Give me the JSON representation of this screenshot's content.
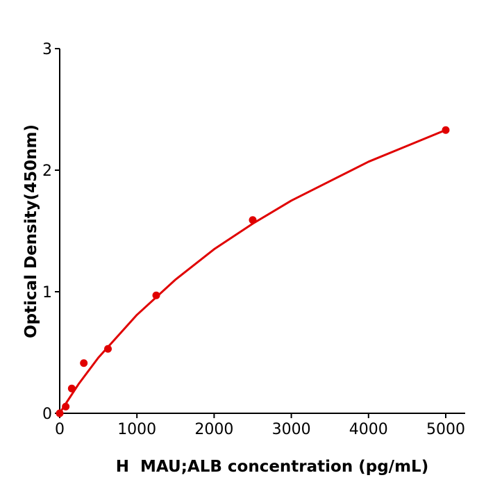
{
  "chart_data": {
    "type": "scatter",
    "title": "",
    "xlabel": "H  MAU;ALB concentration (pg/mL)",
    "ylabel": "Optical Density(450nm)",
    "xlim": [
      0,
      5250
    ],
    "ylim": [
      0,
      3
    ],
    "xticks": [
      "0",
      "1000",
      "2000",
      "3000",
      "4000",
      "5000"
    ],
    "yticks": [
      "0",
      "1",
      "2",
      "3"
    ],
    "grid": false,
    "legend": "none",
    "color": "#e00000",
    "points": {
      "x": [
        0,
        78,
        156,
        312,
        625,
        1250,
        2500,
        5000
      ],
      "y": [
        0.0,
        0.055,
        0.204,
        0.413,
        0.53,
        0.97,
        1.59,
        2.33
      ]
    },
    "fitted_curve": {
      "x": [
        0,
        25,
        50,
        100,
        250,
        500,
        1000,
        1500,
        2000,
        2500,
        3000,
        3500,
        4000,
        4500,
        5000
      ],
      "y": [
        0,
        0.026,
        0.052,
        0.1,
        0.245,
        0.457,
        0.81,
        1.1,
        1.35,
        1.56,
        1.75,
        1.91,
        2.07,
        2.2,
        2.33
      ]
    }
  }
}
